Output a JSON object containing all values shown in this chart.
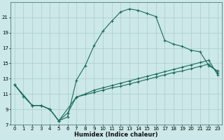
{
  "title": "",
  "xlabel": "Humidex (Indice chaleur)",
  "bg_color": "#cce8e8",
  "grid_color": "#aacccc",
  "line_color": "#1a6b5a",
  "xlim": [
    -0.5,
    23.5
  ],
  "ylim": [
    7,
    23.0
  ],
  "xticks": [
    0,
    1,
    2,
    3,
    4,
    5,
    6,
    7,
    8,
    9,
    10,
    11,
    12,
    13,
    14,
    15,
    16,
    17,
    18,
    19,
    20,
    21,
    22,
    23
  ],
  "yticks": [
    7,
    9,
    11,
    13,
    15,
    17,
    19,
    21
  ],
  "line1_x": [
    0,
    1,
    2,
    3,
    4,
    5,
    6,
    7,
    8,
    9,
    10,
    11,
    12,
    13,
    14,
    15,
    16,
    17,
    18,
    19,
    20,
    21,
    22,
    23
  ],
  "line1_y": [
    12.2,
    10.7,
    9.5,
    9.5,
    9.0,
    7.5,
    8.0,
    12.8,
    14.7,
    17.3,
    19.2,
    20.5,
    21.7,
    22.1,
    21.9,
    21.5,
    21.1,
    18.0,
    17.5,
    17.2,
    16.7,
    16.5,
    14.7,
    14.0
  ],
  "line2_x": [
    0,
    2,
    3,
    4,
    5,
    6,
    7,
    8,
    9,
    10,
    11,
    12,
    13,
    14,
    15,
    16,
    17,
    18,
    19,
    20,
    21,
    22,
    23
  ],
  "line2_y": [
    12.2,
    9.5,
    9.5,
    9.0,
    7.5,
    8.5,
    10.6,
    11.0,
    11.5,
    11.8,
    12.1,
    12.4,
    12.7,
    13.0,
    13.3,
    13.6,
    13.9,
    14.2,
    14.5,
    14.8,
    15.1,
    15.4,
    13.5
  ],
  "line3_x": [
    0,
    2,
    3,
    4,
    5,
    7,
    9,
    10,
    11,
    12,
    13,
    14,
    15,
    16,
    17,
    18,
    19,
    20,
    21,
    22,
    23
  ],
  "line3_y": [
    12.2,
    9.5,
    9.5,
    9.0,
    7.5,
    10.6,
    11.2,
    11.5,
    11.8,
    12.0,
    12.3,
    12.6,
    12.9,
    13.2,
    13.5,
    13.8,
    14.0,
    14.3,
    14.6,
    14.9,
    13.8
  ]
}
